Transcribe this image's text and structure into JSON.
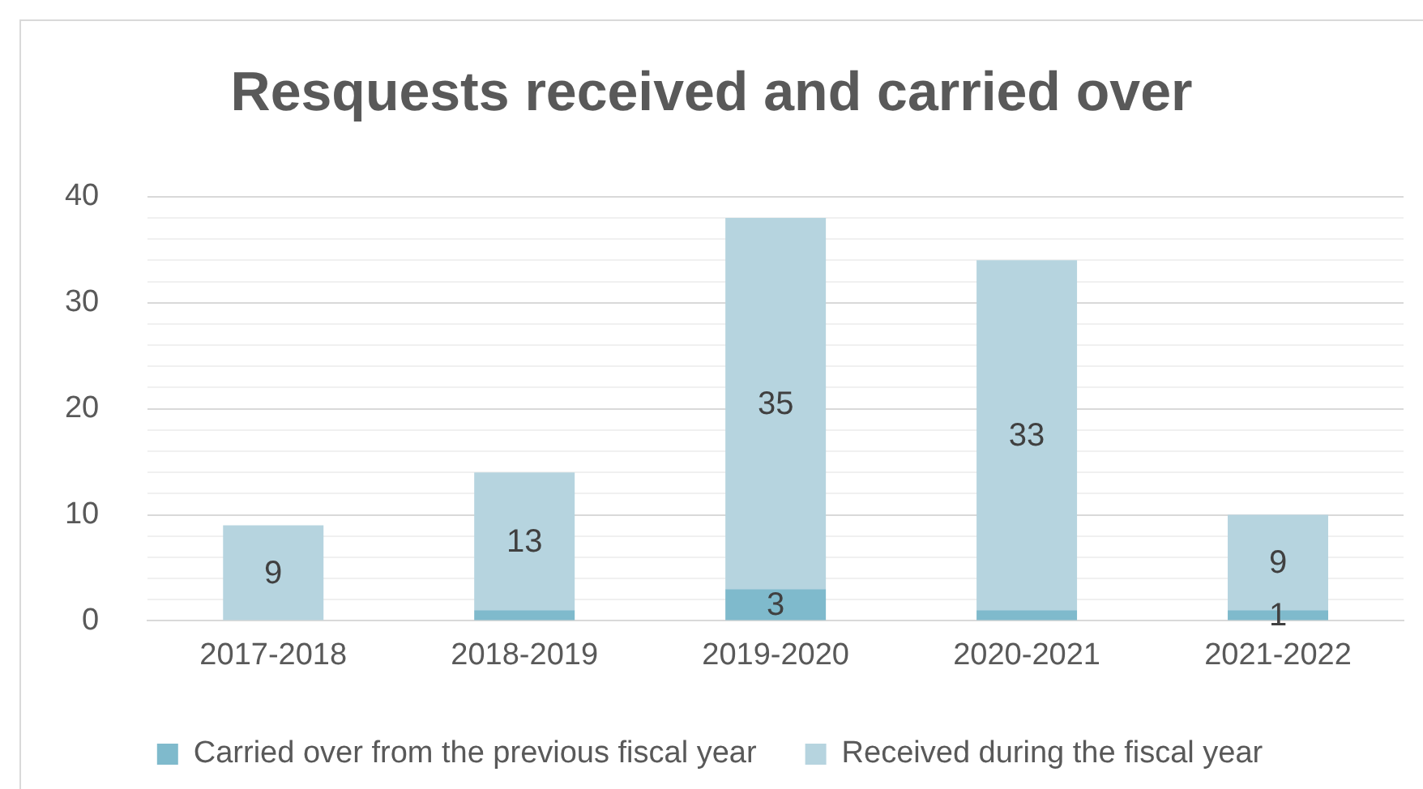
{
  "chart_data": {
    "type": "bar",
    "title": "Resquests received and carried over",
    "categories": [
      "2017-2018",
      "2018-2019",
      "2019-2020",
      "2020-2021",
      "2021-2022"
    ],
    "stacked": true,
    "series": [
      {
        "name": "Carried over from the previous fiscal year",
        "color": "#7fbacc",
        "values": [
          0,
          1,
          3,
          1,
          1
        ],
        "value_labels": [
          null,
          null,
          "3",
          null,
          "1"
        ]
      },
      {
        "name": "Received during the fiscal year",
        "color": "#b6d4df",
        "values": [
          9,
          13,
          35,
          33,
          9
        ],
        "value_labels": [
          "9",
          "13",
          "35",
          "33",
          "9"
        ]
      }
    ],
    "ylim": [
      0,
      40
    ],
    "yticks": [
      0,
      {
        "value": 2,
        "label": null
      },
      {
        "value": 4,
        "label": null
      },
      {
        "value": 6,
        "label": null
      },
      {
        "value": 8,
        "label": null
      },
      10,
      {
        "value": 12,
        "label": null
      },
      {
        "value": 14,
        "label": null
      },
      {
        "value": 16,
        "label": null
      },
      {
        "value": 18,
        "label": null
      },
      20,
      {
        "value": 22,
        "label": null
      },
      {
        "value": 24,
        "label": null
      },
      {
        "value": 26,
        "label": null
      },
      {
        "value": 28,
        "label": null
      },
      30,
      {
        "value": 32,
        "label": null
      },
      {
        "value": 34,
        "label": null
      },
      {
        "value": 36,
        "label": null
      },
      {
        "value": 38,
        "label": null
      },
      40
    ],
    "grid": "y",
    "legend": "bottom"
  }
}
